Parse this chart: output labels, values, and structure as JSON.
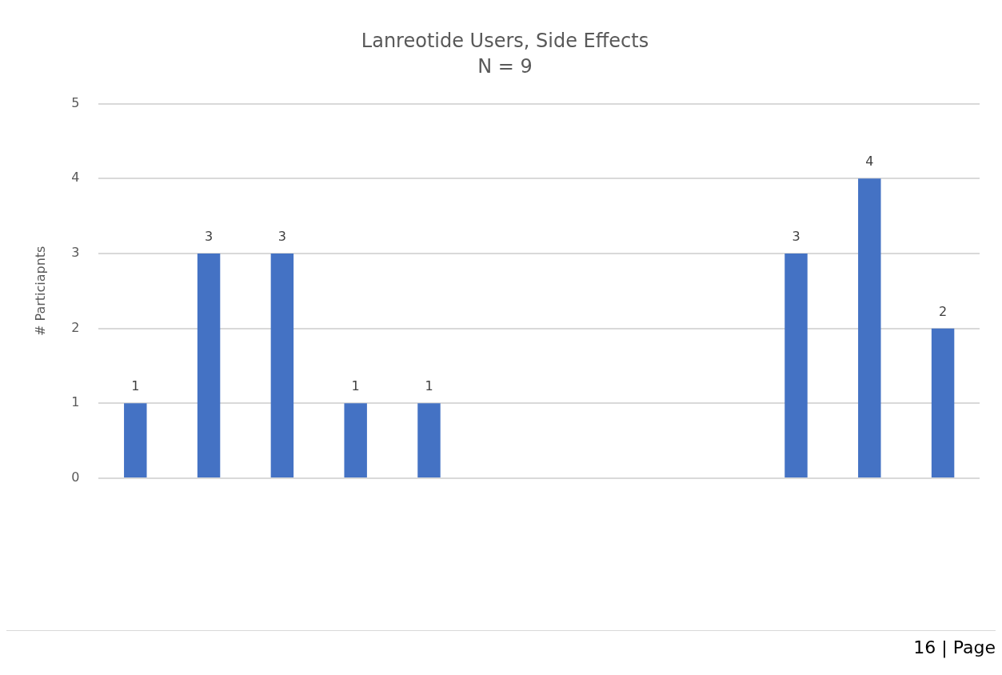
{
  "chart_data": {
    "type": "bar",
    "title": "Lanreotide Users, Side Effects",
    "subtitle": "N = 9",
    "ylabel": "# Particiapnts",
    "categories": [
      null,
      null,
      null,
      null,
      null,
      null,
      null,
      null,
      null,
      null,
      null,
      null
    ],
    "series": [
      {
        "color": "#4472c4",
        "values": [
          1,
          3,
          3,
          1,
          1,
          null,
          null,
          null,
          null,
          3,
          4,
          2
        ]
      }
    ],
    "ylim": [
      0,
      5
    ],
    "yticks": [
      0,
      1,
      2,
      3,
      4,
      5
    ],
    "grid": "y",
    "legend": false,
    "data_labels": true,
    "tick_labels": "y",
    "annotations": [
      "16 | Page"
    ]
  }
}
